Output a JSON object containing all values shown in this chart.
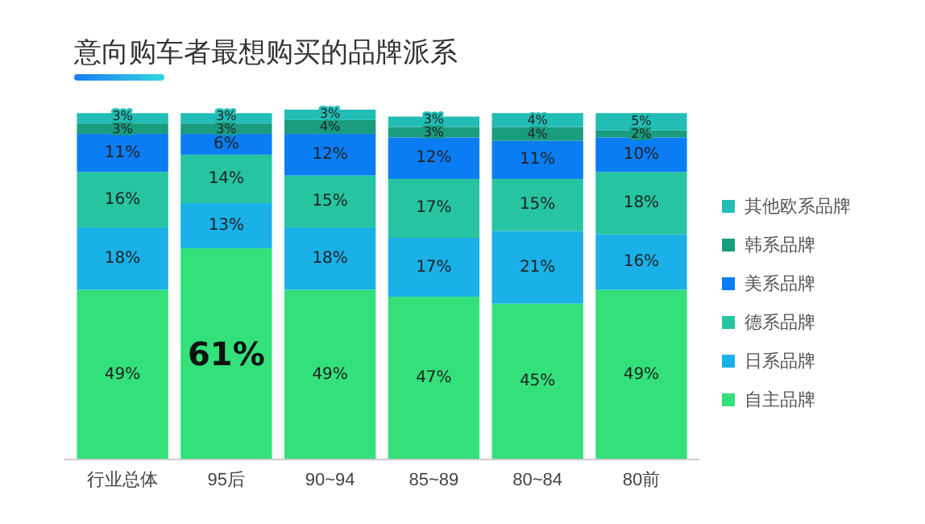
{
  "chart_data": {
    "type": "bar",
    "stacked": true,
    "title": "意向购车者最想购买的品牌派系",
    "categories": [
      "行业总体",
      "95后",
      "90~94",
      "85~89",
      "80~84",
      "80前"
    ],
    "series": [
      {
        "name": "自主品牌",
        "color": "#33e07a",
        "values": [
          49,
          61,
          49,
          47,
          45,
          49
        ],
        "value_labels": [
          "49%",
          "61%",
          "49%",
          "47%",
          "45%",
          "49%"
        ]
      },
      {
        "name": "日系品牌",
        "color": "#1ab0e8",
        "values": [
          18,
          13,
          18,
          17,
          21,
          16
        ],
        "value_labels": [
          "18%",
          "13%",
          "18%",
          "17%",
          "21%",
          "16%"
        ]
      },
      {
        "name": "德系品牌",
        "color": "#26c4a0",
        "values": [
          16,
          14,
          15,
          17,
          15,
          18
        ],
        "value_labels": [
          "16%",
          "14%",
          "15%",
          "17%",
          "15%",
          "18%"
        ]
      },
      {
        "name": "美系品牌",
        "color": "#0a7df5",
        "values": [
          11,
          6,
          12,
          12,
          11,
          10
        ],
        "value_labels": [
          "11%",
          "6%",
          "12%",
          "12%",
          "11%",
          "10%"
        ]
      },
      {
        "name": "韩系品牌",
        "color": "#1a9c7e",
        "values": [
          3,
          3,
          4,
          3,
          4,
          2
        ],
        "value_labels": [
          "3%",
          "3%",
          "4%",
          "3%",
          "4%",
          "2%"
        ]
      },
      {
        "name": "其他欧系品牌",
        "color": "#22bdb5",
        "values": [
          3,
          3,
          3,
          3,
          4,
          5
        ],
        "value_labels": [
          "3%",
          "3%",
          "3%",
          "3%",
          "4%",
          "5%"
        ]
      }
    ],
    "legend": "right"
  }
}
